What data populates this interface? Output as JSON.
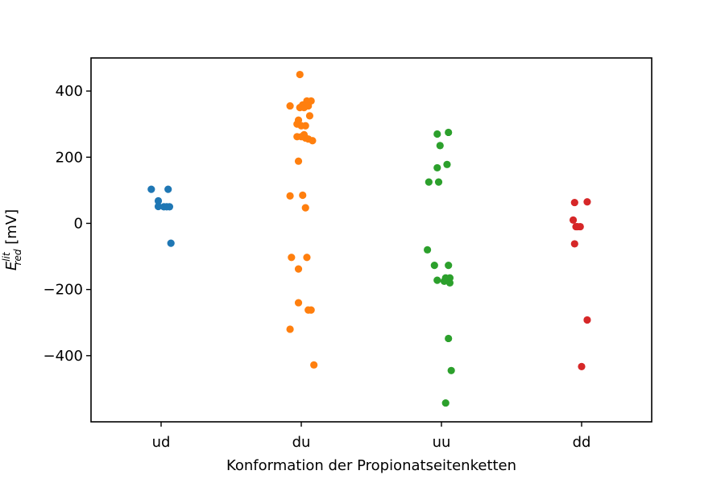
{
  "chart_data": {
    "type": "scatter",
    "xlabel": "Konformation der Propionatseitenketten",
    "ylabel": {
      "symbol": "E",
      "superscript": "lit",
      "subscript": "red",
      "unit": " [mV]"
    },
    "categories": [
      "ud",
      "du",
      "uu",
      "dd"
    ],
    "ylim": [
      -600,
      500
    ],
    "yticks": [
      400,
      200,
      0,
      -200,
      -400
    ],
    "ytick_labels": [
      "400",
      "200",
      "0",
      "−200",
      "−400"
    ],
    "grid": false,
    "legend": "none",
    "series": [
      {
        "category": "ud",
        "color": "#1f77b4",
        "points": [
          {
            "x": -0.07,
            "y": 103
          },
          {
            "x": 0.05,
            "y": 103
          },
          {
            "x": -0.02,
            "y": 68
          },
          {
            "x": -0.02,
            "y": 51
          },
          {
            "x": 0.02,
            "y": 50
          },
          {
            "x": 0.06,
            "y": 50
          },
          {
            "x": 0.04,
            "y": 50
          },
          {
            "x": 0.07,
            "y": -60
          }
        ]
      },
      {
        "category": "du",
        "color": "#ff7f0e",
        "points": [
          {
            "x": -0.01,
            "y": 450
          },
          {
            "x": 0.04,
            "y": 370
          },
          {
            "x": 0.07,
            "y": 370
          },
          {
            "x": -0.08,
            "y": 355
          },
          {
            "x": 0.01,
            "y": 358
          },
          {
            "x": -0.01,
            "y": 350
          },
          {
            "x": 0.02,
            "y": 350
          },
          {
            "x": 0.05,
            "y": 355
          },
          {
            "x": 0.06,
            "y": 325
          },
          {
            "x": -0.02,
            "y": 312
          },
          {
            "x": -0.03,
            "y": 300
          },
          {
            "x": 0.0,
            "y": 295
          },
          {
            "x": 0.03,
            "y": 295
          },
          {
            "x": 0.02,
            "y": 268
          },
          {
            "x": -0.03,
            "y": 262
          },
          {
            "x": 0.0,
            "y": 262
          },
          {
            "x": 0.03,
            "y": 258
          },
          {
            "x": 0.05,
            "y": 255
          },
          {
            "x": 0.08,
            "y": 250
          },
          {
            "x": -0.02,
            "y": 188
          },
          {
            "x": -0.08,
            "y": 83
          },
          {
            "x": 0.01,
            "y": 85
          },
          {
            "x": 0.03,
            "y": 47
          },
          {
            "x": -0.07,
            "y": -103
          },
          {
            "x": 0.04,
            "y": -103
          },
          {
            "x": -0.02,
            "y": -138
          },
          {
            "x": -0.02,
            "y": -240
          },
          {
            "x": 0.05,
            "y": -262
          },
          {
            "x": 0.07,
            "y": -262
          },
          {
            "x": -0.08,
            "y": -320
          },
          {
            "x": 0.09,
            "y": -428
          }
        ]
      },
      {
        "category": "uu",
        "color": "#2ca02c",
        "points": [
          {
            "x": 0.05,
            "y": 275
          },
          {
            "x": -0.03,
            "y": 270
          },
          {
            "x": -0.01,
            "y": 235
          },
          {
            "x": 0.04,
            "y": 178
          },
          {
            "x": -0.03,
            "y": 168
          },
          {
            "x": -0.09,
            "y": 125
          },
          {
            "x": -0.02,
            "y": 125
          },
          {
            "x": -0.1,
            "y": -80
          },
          {
            "x": -0.05,
            "y": -127
          },
          {
            "x": 0.05,
            "y": -127
          },
          {
            "x": 0.03,
            "y": -165
          },
          {
            "x": 0.06,
            "y": -165
          },
          {
            "x": -0.03,
            "y": -172
          },
          {
            "x": 0.02,
            "y": -175
          },
          {
            "x": 0.06,
            "y": -180
          },
          {
            "x": 0.05,
            "y": -348
          },
          {
            "x": 0.07,
            "y": -445
          },
          {
            "x": 0.03,
            "y": -543
          }
        ]
      },
      {
        "category": "dd",
        "color": "#d62728",
        "points": [
          {
            "x": -0.05,
            "y": 63
          },
          {
            "x": 0.04,
            "y": 65
          },
          {
            "x": -0.06,
            "y": 10
          },
          {
            "x": -0.04,
            "y": -10
          },
          {
            "x": -0.01,
            "y": -10
          },
          {
            "x": -0.03,
            "y": -10
          },
          {
            "x": -0.05,
            "y": -62
          },
          {
            "x": 0.04,
            "y": -292
          },
          {
            "x": 0.0,
            "y": -433
          }
        ]
      }
    ]
  }
}
